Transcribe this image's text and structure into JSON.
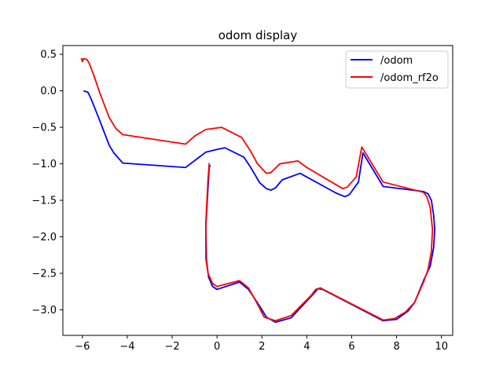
{
  "chart_data": {
    "type": "line",
    "title": "odom display",
    "xlabel": "",
    "ylabel": "",
    "xlim": [
      -6.87,
      10.5
    ],
    "ylim": [
      -3.35,
      0.62
    ],
    "x_ticks": [
      -6,
      -4,
      -2,
      0,
      2,
      4,
      6,
      8,
      10
    ],
    "x_tick_labels": [
      "−6",
      "−4",
      "−2",
      "0",
      "2",
      "4",
      "6",
      "8",
      "10"
    ],
    "y_ticks": [
      0.5,
      0.0,
      -0.5,
      -1.0,
      -1.5,
      -2.0,
      -2.5,
      -3.0
    ],
    "y_tick_labels": [
      "0.5",
      "0.0",
      "−0.5",
      "−1.0",
      "−1.5",
      "−2.0",
      "−2.5",
      "−3.0"
    ],
    "grid": false,
    "legend_position": "top-right",
    "series": [
      {
        "name": "/odom",
        "color": "#0000ff",
        "points": [
          [
            -5.95,
            0.0
          ],
          [
            -5.75,
            -0.02
          ],
          [
            -5.6,
            -0.12
          ],
          [
            -5.3,
            -0.35
          ],
          [
            -4.8,
            -0.75
          ],
          [
            -4.6,
            -0.85
          ],
          [
            -4.2,
            -0.99
          ],
          [
            -1.4,
            -1.05
          ],
          [
            -0.5,
            -0.84
          ],
          [
            -0.1,
            -0.81
          ],
          [
            0.35,
            -0.78
          ],
          [
            1.2,
            -0.91
          ],
          [
            1.5,
            -1.05
          ],
          [
            1.9,
            -1.26
          ],
          [
            2.2,
            -1.34
          ],
          [
            2.4,
            -1.36
          ],
          [
            2.6,
            -1.33
          ],
          [
            2.9,
            -1.22
          ],
          [
            3.7,
            -1.13
          ],
          [
            5.3,
            -1.4
          ],
          [
            5.7,
            -1.45
          ],
          [
            5.9,
            -1.42
          ],
          [
            6.3,
            -1.25
          ],
          [
            6.5,
            -0.85
          ],
          [
            7.4,
            -1.31
          ],
          [
            9.2,
            -1.38
          ],
          [
            9.4,
            -1.41
          ],
          [
            9.55,
            -1.5
          ],
          [
            9.65,
            -1.7
          ],
          [
            9.7,
            -1.9
          ],
          [
            9.65,
            -2.15
          ],
          [
            9.5,
            -2.4
          ],
          [
            9.2,
            -2.6
          ],
          [
            8.8,
            -2.9
          ],
          [
            8.5,
            -3.02
          ],
          [
            8.0,
            -3.13
          ],
          [
            7.4,
            -3.15
          ],
          [
            4.7,
            -2.72
          ],
          [
            4.5,
            -2.71
          ],
          [
            4.3,
            -2.78
          ],
          [
            3.3,
            -3.11
          ],
          [
            2.6,
            -3.17
          ],
          [
            2.2,
            -3.1
          ],
          [
            1.9,
            -2.95
          ],
          [
            1.4,
            -2.72
          ],
          [
            1.0,
            -2.62
          ],
          [
            0.0,
            -2.72
          ],
          [
            -0.2,
            -2.68
          ],
          [
            -0.38,
            -2.55
          ],
          [
            -0.47,
            -2.32
          ],
          [
            -0.5,
            -1.85
          ],
          [
            -0.35,
            -1.05
          ],
          [
            -0.3,
            -1.02
          ]
        ]
      },
      {
        "name": "/odom_rf2o",
        "color": "#ff0000",
        "points": [
          [
            -6.05,
            0.45
          ],
          [
            -6.0,
            0.4
          ],
          [
            -5.95,
            0.44
          ],
          [
            -5.8,
            0.43
          ],
          [
            -5.7,
            0.38
          ],
          [
            -5.5,
            0.22
          ],
          [
            -5.2,
            -0.05
          ],
          [
            -4.8,
            -0.37
          ],
          [
            -4.5,
            -0.52
          ],
          [
            -4.2,
            -0.6
          ],
          [
            -1.4,
            -0.73
          ],
          [
            -1.0,
            -0.62
          ],
          [
            -0.5,
            -0.53
          ],
          [
            0.2,
            -0.5
          ],
          [
            1.1,
            -0.64
          ],
          [
            1.5,
            -0.83
          ],
          [
            1.8,
            -1.0
          ],
          [
            2.2,
            -1.13
          ],
          [
            2.4,
            -1.12
          ],
          [
            2.8,
            -1.0
          ],
          [
            3.6,
            -0.96
          ],
          [
            4.0,
            -1.05
          ],
          [
            5.6,
            -1.34
          ],
          [
            5.8,
            -1.32
          ],
          [
            6.2,
            -1.18
          ],
          [
            6.45,
            -0.77
          ],
          [
            7.4,
            -1.25
          ],
          [
            9.2,
            -1.39
          ],
          [
            9.35,
            -1.45
          ],
          [
            9.5,
            -1.6
          ],
          [
            9.6,
            -1.9
          ],
          [
            9.55,
            -2.2
          ],
          [
            9.4,
            -2.45
          ],
          [
            9.2,
            -2.62
          ],
          [
            8.8,
            -2.9
          ],
          [
            8.4,
            -3.03
          ],
          [
            7.9,
            -3.12
          ],
          [
            7.4,
            -3.14
          ],
          [
            4.6,
            -2.7
          ],
          [
            4.4,
            -2.72
          ],
          [
            4.2,
            -2.8
          ],
          [
            3.3,
            -3.08
          ],
          [
            2.6,
            -3.15
          ],
          [
            2.1,
            -3.1
          ],
          [
            1.8,
            -2.92
          ],
          [
            1.4,
            -2.7
          ],
          [
            1.0,
            -2.6
          ],
          [
            0.0,
            -2.68
          ],
          [
            -0.2,
            -2.64
          ],
          [
            -0.4,
            -2.5
          ],
          [
            -0.5,
            -2.3
          ],
          [
            -0.5,
            -1.8
          ],
          [
            -0.4,
            -1.2
          ],
          [
            -0.35,
            -1.0
          ],
          [
            -0.35,
            -0.99
          ]
        ]
      }
    ]
  }
}
